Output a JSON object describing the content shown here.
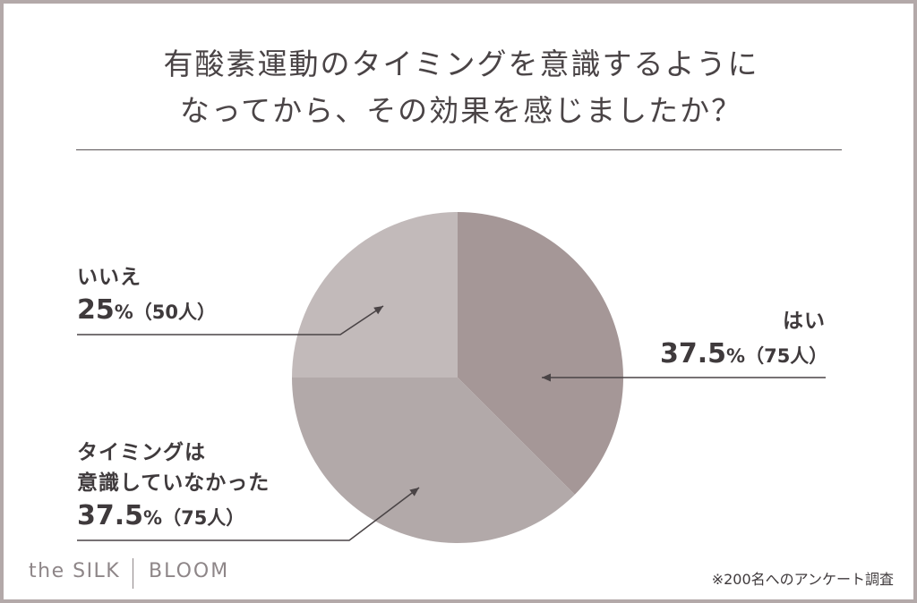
{
  "title_line1": "有酸素運動のタイミングを意識するように",
  "title_line2": "なってから、その効果を感じましたか？",
  "chart_data": {
    "type": "pie",
    "title": "有酸素運動のタイミングを意識するようになってから、その効果を感じましたか？",
    "slices": [
      {
        "label": "はい",
        "percent": 37.5,
        "percent_text": "37.5",
        "count_text": "（75人）",
        "count": 75,
        "color": "#a59797"
      },
      {
        "label": "タイミングは意識していなかった",
        "label_line1": "タイミングは",
        "label_line2": "意識していなかった",
        "percent": 37.5,
        "percent_text": "37.5",
        "count_text": "（75人）",
        "count": 75,
        "color": "#b2a9a9"
      },
      {
        "label": "いいえ",
        "percent": 25,
        "percent_text": "25",
        "count_text": "（50人）",
        "count": 50,
        "color": "#c2baba"
      }
    ],
    "percent_sign": "%"
  },
  "brand": {
    "name": "the SILK",
    "sub": "BLOOM"
  },
  "footnote": "※200名へのアンケート調査"
}
